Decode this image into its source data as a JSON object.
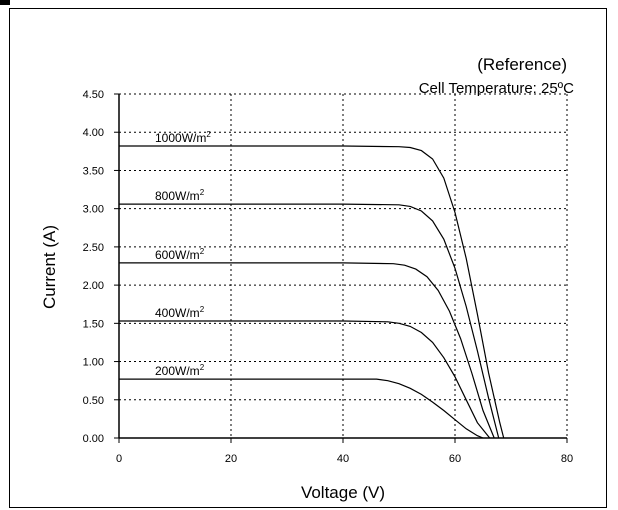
{
  "chart_data": {
    "type": "line",
    "title": "(Reference)",
    "subtitle": "Cell Temperature: 25ºC",
    "xlabel": "Voltage (V)",
    "ylabel": "Current (A)",
    "xlim": [
      0,
      80
    ],
    "ylim": [
      0,
      4.5
    ],
    "grid": true,
    "x_ticks": [
      "0",
      "20",
      "40",
      "60",
      "80"
    ],
    "y_ticks": [
      "0.00",
      "0.50",
      "1.00",
      "1.50",
      "2.00",
      "2.50",
      "3.00",
      "3.50",
      "4.00",
      "4.50"
    ],
    "series": [
      {
        "name": "1000W/m",
        "sup": "2",
        "points": [
          [
            0,
            3.82
          ],
          [
            40,
            3.82
          ],
          [
            50,
            3.81
          ],
          [
            52,
            3.8
          ],
          [
            54,
            3.76
          ],
          [
            56,
            3.65
          ],
          [
            58,
            3.4
          ],
          [
            60,
            2.95
          ],
          [
            62,
            2.35
          ],
          [
            64,
            1.62
          ],
          [
            66,
            0.85
          ],
          [
            68,
            0.2
          ],
          [
            68.7,
            0.0
          ]
        ]
      },
      {
        "name": "800W/m",
        "sup": "2",
        "points": [
          [
            0,
            3.06
          ],
          [
            40,
            3.06
          ],
          [
            50,
            3.05
          ],
          [
            52,
            3.03
          ],
          [
            54,
            2.97
          ],
          [
            56,
            2.84
          ],
          [
            58,
            2.6
          ],
          [
            60,
            2.22
          ],
          [
            62,
            1.72
          ],
          [
            64,
            1.14
          ],
          [
            66,
            0.52
          ],
          [
            67.8,
            0.0
          ]
        ]
      },
      {
        "name": "600W/m",
        "sup": "2",
        "points": [
          [
            0,
            2.29
          ],
          [
            40,
            2.29
          ],
          [
            49,
            2.28
          ],
          [
            51,
            2.26
          ],
          [
            53,
            2.21
          ],
          [
            55,
            2.11
          ],
          [
            57,
            1.93
          ],
          [
            59,
            1.66
          ],
          [
            61,
            1.3
          ],
          [
            63,
            0.85
          ],
          [
            65,
            0.36
          ],
          [
            67,
            0.0
          ]
        ]
      },
      {
        "name": "400W/m",
        "sup": "2",
        "points": [
          [
            0,
            1.53
          ],
          [
            40,
            1.53
          ],
          [
            48,
            1.52
          ],
          [
            50,
            1.5
          ],
          [
            52,
            1.46
          ],
          [
            54,
            1.38
          ],
          [
            56,
            1.25
          ],
          [
            58,
            1.05
          ],
          [
            60,
            0.8
          ],
          [
            62,
            0.5
          ],
          [
            64,
            0.2
          ],
          [
            66.2,
            0.0
          ]
        ]
      },
      {
        "name": "200W/m",
        "sup": "2",
        "points": [
          [
            0,
            0.77
          ],
          [
            40,
            0.77
          ],
          [
            46,
            0.77
          ],
          [
            48,
            0.75
          ],
          [
            50,
            0.71
          ],
          [
            52,
            0.65
          ],
          [
            54,
            0.57
          ],
          [
            56,
            0.47
          ],
          [
            58,
            0.36
          ],
          [
            60,
            0.24
          ],
          [
            62,
            0.12
          ],
          [
            64,
            0.03
          ],
          [
            65,
            0.0
          ]
        ]
      }
    ]
  }
}
